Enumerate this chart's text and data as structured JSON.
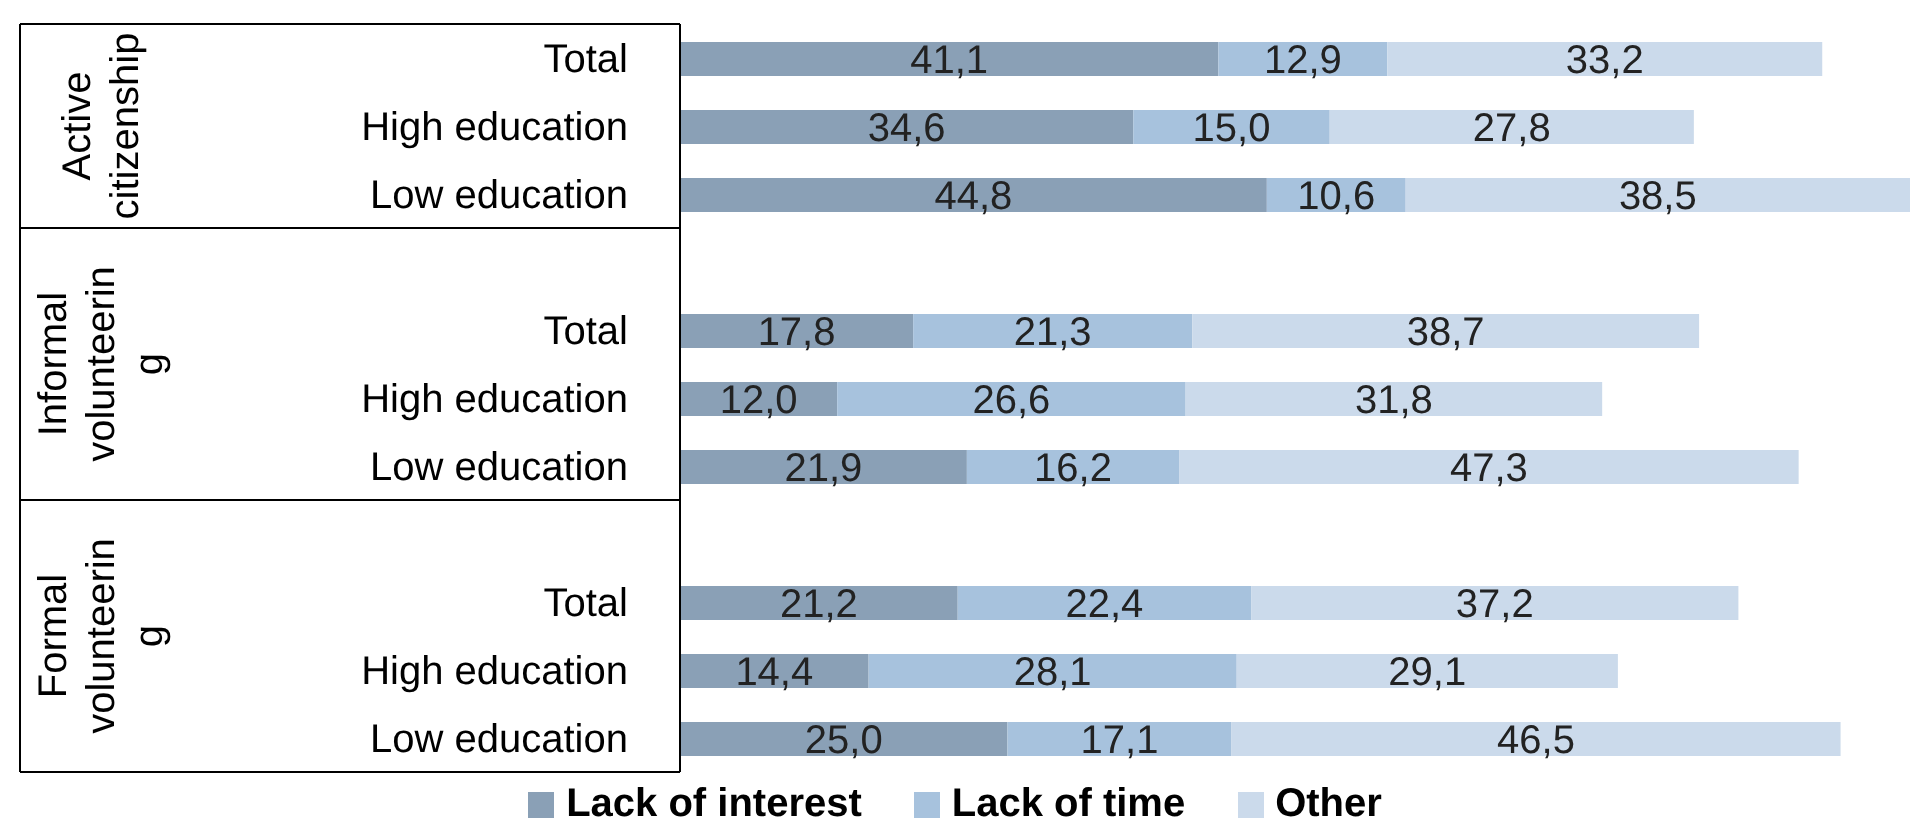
{
  "chart_data": {
    "type": "bar",
    "orientation": "horizontal",
    "stacked": true,
    "categories": [
      "Total",
      "High education",
      "Low education",
      null,
      "Total",
      "High education",
      "Low education",
      null,
      "Total",
      "High education",
      "Low education"
    ],
    "series": [
      {
        "name": "Lack of interest",
        "color": "#8aa0b6",
        "values": [
          41.1,
          34.6,
          44.8,
          null,
          17.8,
          12.0,
          21.9,
          null,
          21.2,
          14.4,
          25.0
        ],
        "value_labels": [
          "41,1",
          "34,6",
          "44,8",
          null,
          "17,8",
          "12,0",
          "21,9",
          null,
          "21,2",
          "14,4",
          "25,0"
        ]
      },
      {
        "name": "Lack of time",
        "color": "#a7c2dd",
        "values": [
          12.9,
          15.0,
          10.6,
          null,
          21.3,
          26.6,
          16.2,
          null,
          22.4,
          28.1,
          17.1
        ],
        "value_labels": [
          "12,9",
          "15,0",
          "10,6",
          null,
          "21,3",
          "26,6",
          "16,2",
          null,
          "22,4",
          "28,1",
          "17,1"
        ]
      },
      {
        "name": "Other",
        "color": "#cbdaeb",
        "values": [
          33.2,
          27.8,
          38.5,
          null,
          38.7,
          31.8,
          47.3,
          null,
          37.2,
          29.1,
          46.5
        ],
        "value_labels": [
          "33,2",
          "27,8",
          "38,5",
          null,
          "38,7",
          "31,8",
          "47,3",
          null,
          "37,2",
          "29,1",
          "46,5"
        ]
      }
    ],
    "annotations": [
      "Active citizenship",
      "Informal volunteering",
      "Formal volunteering"
    ],
    "legend": "bottom"
  }
}
